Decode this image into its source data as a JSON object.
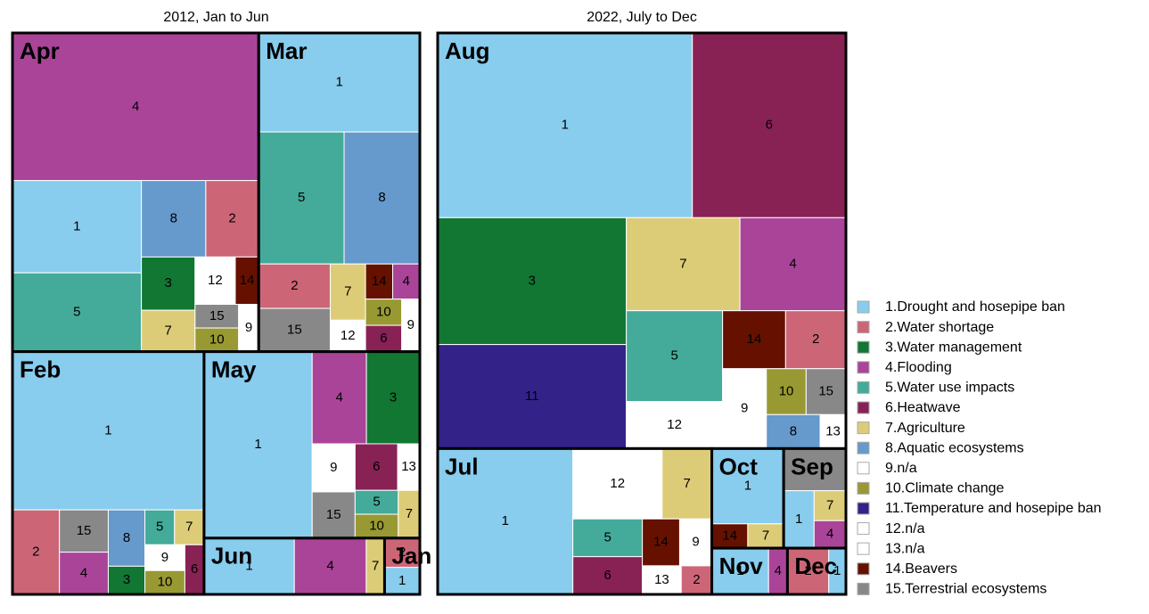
{
  "chart_data": {
    "type": "treemap",
    "panels": [
      {
        "title": "2012, Jan to Jun",
        "groups": [
          {
            "label": "Apr",
            "items": [
              {
                "label": "4",
                "value": 458
              },
              {
                "label": "1",
                "value": 150
              },
              {
                "label": "5",
                "value": 128
              },
              {
                "label": "8",
                "value": 62
              },
              {
                "label": "2",
                "value": 51
              },
              {
                "label": "3",
                "value": 36
              },
              {
                "label": "7",
                "value": 28
              },
              {
                "label": "12",
                "value": 24
              },
              {
                "label": "14",
                "value": 14
              },
              {
                "label": "15",
                "value": 13
              },
              {
                "label": "10",
                "value": 13
              },
              {
                "label": "9",
                "value": 12
              }
            ]
          },
          {
            "label": "Mar",
            "items": [
              {
                "label": "1",
                "value": 201
              },
              {
                "label": "5",
                "value": 142
              },
              {
                "label": "8",
                "value": 126
              },
              {
                "label": "2",
                "value": 40
              },
              {
                "label": "15",
                "value": 39
              },
              {
                "label": "7",
                "value": 25
              },
              {
                "label": "12",
                "value": 14
              },
              {
                "label": "14",
                "value": 12
              },
              {
                "label": "4",
                "value": 12
              },
              {
                "label": "10",
                "value": 12
              },
              {
                "label": "6",
                "value": 12
              },
              {
                "label": "9",
                "value": 12
              }
            ]
          },
          {
            "label": "Feb",
            "items": [
              {
                "label": "1",
                "value": 382
              },
              {
                "label": "2",
                "value": 50
              },
              {
                "label": "15",
                "value": 26
              },
              {
                "label": "4",
                "value": 26
              },
              {
                "label": "8",
                "value": 26
              },
              {
                "label": "3",
                "value": 13
              },
              {
                "label": "5",
                "value": 13
              },
              {
                "label": "7",
                "value": 13
              },
              {
                "label": "9",
                "value": 13
              },
              {
                "label": "10",
                "value": 12
              },
              {
                "label": "6",
                "value": 12
              }
            ]
          },
          {
            "label": "May",
            "items": [
              {
                "label": "1",
                "value": 254
              },
              {
                "label": "4",
                "value": 63
              },
              {
                "label": "3",
                "value": 62
              },
              {
                "label": "9",
                "value": 26
              },
              {
                "label": "15",
                "value": 25
              },
              {
                "label": "6",
                "value": 25
              },
              {
                "label": "13",
                "value": 13
              },
              {
                "label": "5",
                "value": 13
              },
              {
                "label": "10",
                "value": 13
              },
              {
                "label": "7",
                "value": 13
              }
            ]
          },
          {
            "label": "Jun",
            "items": [
              {
                "label": "1",
                "value": 64
              },
              {
                "label": "4",
                "value": 51
              },
              {
                "label": "7",
                "value": 13
              }
            ]
          },
          {
            "label": "Jan",
            "items": [
              {
                "label": "2",
                "value": 13
              },
              {
                "label": "1",
                "value": 12
              }
            ]
          }
        ]
      },
      {
        "title": "2022, July to Dec",
        "groups": [
          {
            "label": "Aug",
            "items": [
              {
                "label": "1",
                "value": 592
              },
              {
                "label": "6",
                "value": 357
              },
              {
                "label": "3",
                "value": 301
              },
              {
                "label": "11",
                "value": 247
              },
              {
                "label": "7",
                "value": 133
              },
              {
                "label": "4",
                "value": 124
              },
              {
                "label": "5",
                "value": 110
              },
              {
                "label": "12",
                "value": 57
              },
              {
                "label": "14",
                "value": 46
              },
              {
                "label": "2",
                "value": 44
              },
              {
                "label": "9",
                "value": 44
              },
              {
                "label": "10",
                "value": 23
              },
              {
                "label": "15",
                "value": 23
              },
              {
                "label": "8",
                "value": 23
              },
              {
                "label": "13",
                "value": 11
              }
            ]
          },
          {
            "label": "Jul",
            "items": [
              {
                "label": "1",
                "value": 248
              },
              {
                "label": "12",
                "value": 79
              },
              {
                "label": "7",
                "value": 44
              },
              {
                "label": "5",
                "value": 33
              },
              {
                "label": "6",
                "value": 33
              },
              {
                "label": "14",
                "value": 22
              },
              {
                "label": "9",
                "value": 19
              },
              {
                "label": "13",
                "value": 14
              },
              {
                "label": "2",
                "value": 11
              }
            ]
          },
          {
            "label": "Oct",
            "items": [
              {
                "label": "1",
                "value": 68
              },
              {
                "label": "14",
                "value": 11
              },
              {
                "label": "7",
                "value": 11
              }
            ]
          },
          {
            "label": "Sep",
            "items": [
              {
                "label": null,
                "value": 33,
                "color": "#888888"
              },
              {
                "label": "1",
                "value": 22
              },
              {
                "label": "7",
                "value": 12
              },
              {
                "label": "4",
                "value": 11
              }
            ]
          },
          {
            "label": "Nov",
            "items": [
              {
                "label": "1",
                "value": 33
              },
              {
                "label": "4",
                "value": 11
              }
            ]
          },
          {
            "label": "Dec",
            "items": [
              {
                "label": "2",
                "value": 24
              },
              {
                "label": "1",
                "value": 10
              }
            ]
          }
        ]
      }
    ],
    "legend": [
      {
        "name": "1.Drought and hosepipe ban",
        "color": "#88CCEE"
      },
      {
        "name": "2.Water shortage",
        "color": "#CC6677"
      },
      {
        "name": "3.Water management",
        "color": "#117733"
      },
      {
        "name": "4.Flooding",
        "color": "#AA4499"
      },
      {
        "name": "5.Water use impacts",
        "color": "#44AA99"
      },
      {
        "name": "6.Heatwave",
        "color": "#882255"
      },
      {
        "name": "7.Agriculture",
        "color": "#DDCC77"
      },
      {
        "name": "8.Aquatic ecosystems",
        "color": "#6699CC"
      },
      {
        "name": "9.n/a",
        "color": "#FFFFFF"
      },
      {
        "name": "10.Climate change",
        "color": "#999933"
      },
      {
        "name": "11.Temperature and hosepipe ban",
        "color": "#332288"
      },
      {
        "name": "12.n/a",
        "color": "#FFFFFF"
      },
      {
        "name": "13.n/a",
        "color": "#FFFFFF"
      },
      {
        "name": "14.Beavers",
        "color": "#661100"
      },
      {
        "name": "15.Terrestrial ecosystems",
        "color": "#888888"
      }
    ]
  }
}
